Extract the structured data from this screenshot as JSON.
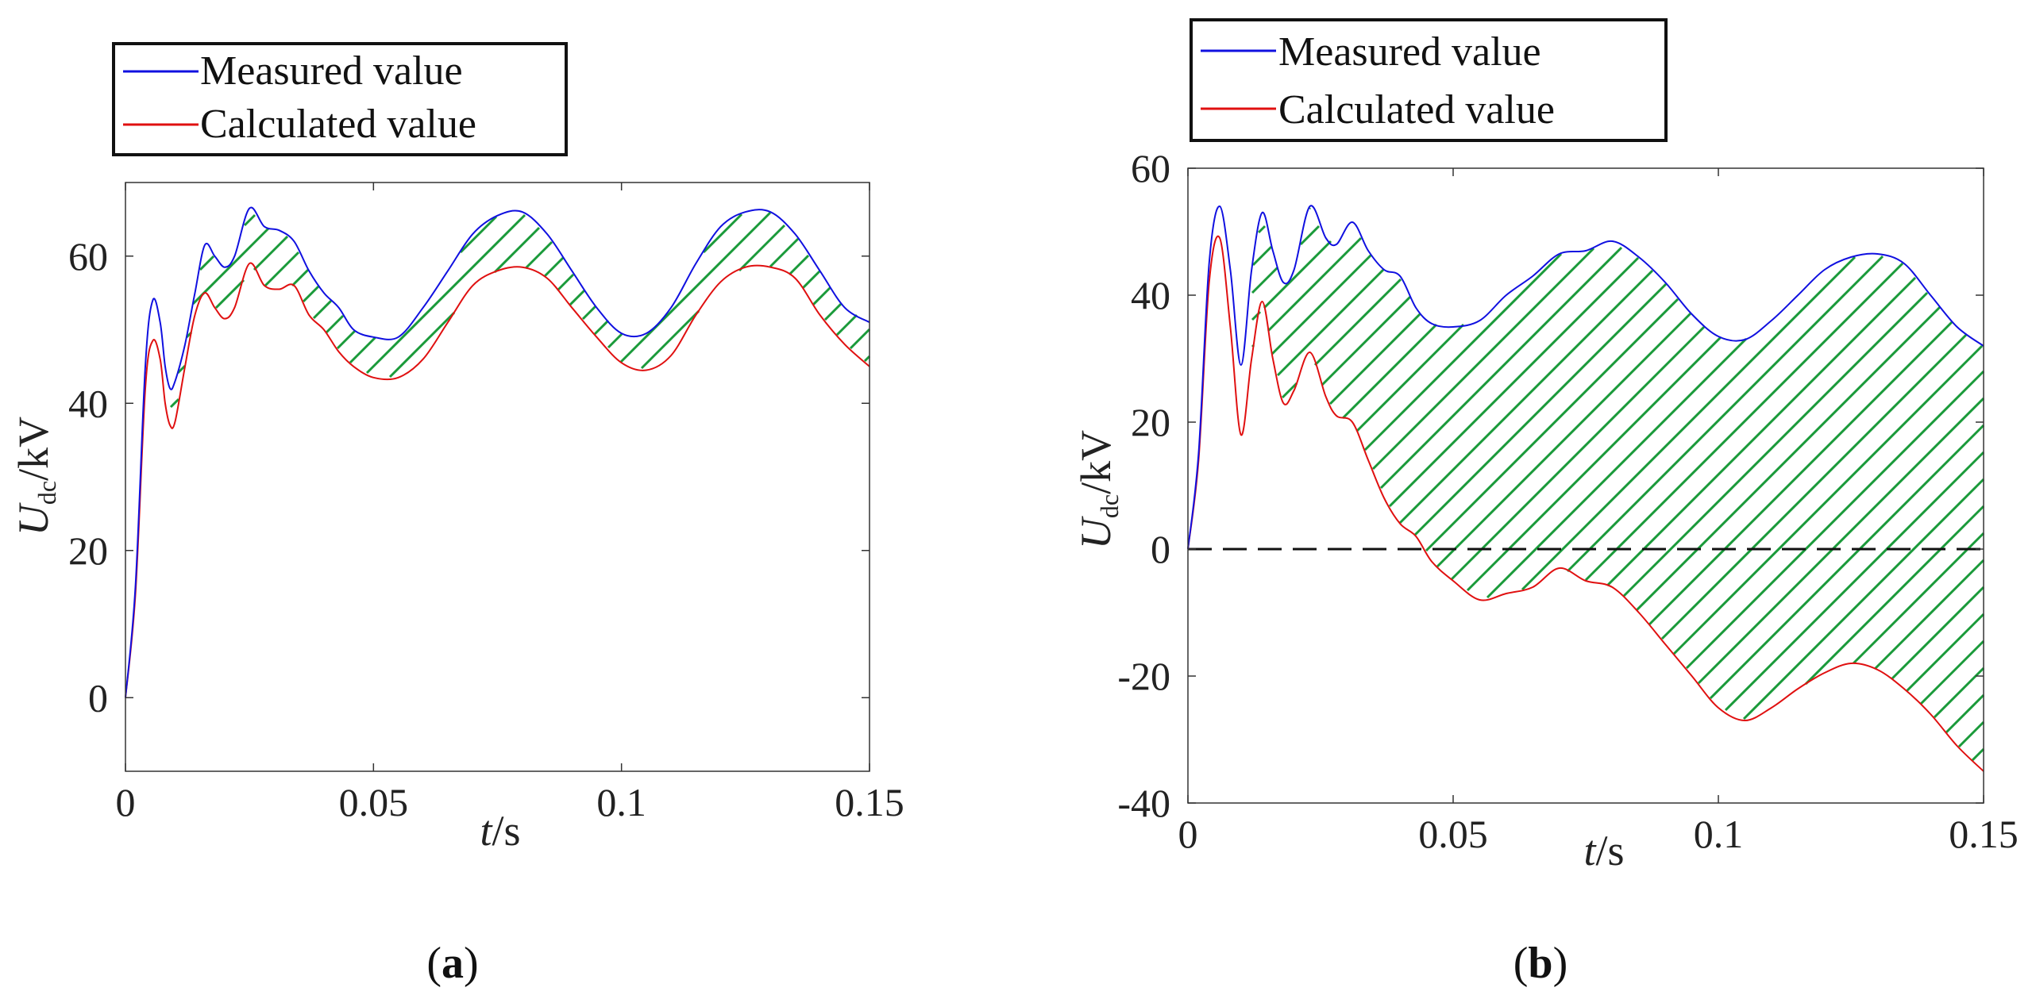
{
  "colors": {
    "measured": "#1010e0",
    "calculated": "#e01010",
    "hatch": "#1a9a3a",
    "zero_line": "#111111",
    "axis": "#333333"
  },
  "chart_data": [
    {
      "type": "line",
      "panel": "a",
      "caption": "(a)",
      "caption_letter": "a",
      "xlabel": "t/s",
      "xlabel_var": "t",
      "xlabel_unit": "/s",
      "ylabel": "U_dc/kV",
      "ylabel_var": "U",
      "ylabel_sub": "dc",
      "ylabel_unit": "/kV",
      "xlim": [
        0,
        0.15
      ],
      "ylim": [
        -10,
        70
      ],
      "xticks": [
        0,
        0.05,
        0.1,
        0.15
      ],
      "xtick_labels": [
        "0",
        "0.05",
        "0.1",
        "0.15"
      ],
      "yticks": [
        0,
        20,
        40,
        60
      ],
      "ytick_labels": [
        "0",
        "20",
        "40",
        "60"
      ],
      "grid": false,
      "legend_position": "above-left",
      "hatch_between_series": true,
      "series": [
        {
          "name": "Measured value",
          "x": [
            0,
            0.002,
            0.004,
            0.0055,
            0.007,
            0.008,
            0.009,
            0.01,
            0.012,
            0.014,
            0.016,
            0.018,
            0.02,
            0.022,
            0.025,
            0.028,
            0.031,
            0.034,
            0.037,
            0.04,
            0.043,
            0.046,
            0.05,
            0.055,
            0.06,
            0.065,
            0.07,
            0.075,
            0.08,
            0.085,
            0.09,
            0.095,
            0.1,
            0.105,
            0.11,
            0.115,
            0.12,
            0.125,
            0.13,
            0.135,
            0.14,
            0.145,
            0.15
          ],
          "y": [
            0,
            15,
            45,
            54,
            51,
            45,
            42,
            43,
            48,
            55,
            61.5,
            60,
            58.5,
            60,
            66.5,
            64,
            63.5,
            62,
            58,
            55,
            53,
            50,
            49,
            49,
            53,
            58,
            63,
            65.5,
            66,
            63,
            58,
            53,
            49.5,
            49.5,
            53,
            59,
            64,
            66,
            66,
            63,
            58,
            53,
            51
          ]
        },
        {
          "name": "Calculated value",
          "x": [
            0,
            0.002,
            0.004,
            0.0055,
            0.007,
            0.008,
            0.009,
            0.01,
            0.012,
            0.014,
            0.016,
            0.018,
            0.02,
            0.022,
            0.025,
            0.028,
            0.031,
            0.034,
            0.037,
            0.04,
            0.043,
            0.046,
            0.05,
            0.055,
            0.06,
            0.065,
            0.07,
            0.075,
            0.08,
            0.085,
            0.09,
            0.095,
            0.1,
            0.105,
            0.11,
            0.115,
            0.12,
            0.125,
            0.13,
            0.135,
            0.14,
            0.145,
            0.15
          ],
          "y": [
            0,
            14,
            42,
            48.5,
            46,
            40,
            37,
            37.5,
            45,
            52,
            55,
            53,
            51.5,
            53,
            59,
            56,
            55.5,
            56,
            52,
            50,
            47,
            45,
            43.5,
            43.5,
            46,
            51,
            56,
            58,
            58.5,
            57,
            53,
            49,
            45.5,
            44.5,
            46.5,
            52,
            56.5,
            58.5,
            58.5,
            57,
            52,
            48,
            45
          ]
        }
      ]
    },
    {
      "type": "line",
      "panel": "b",
      "caption": "(b)",
      "caption_letter": "b",
      "xlabel": "t/s",
      "xlabel_var": "t",
      "xlabel_unit": "/s",
      "ylabel": "U_dc/kV",
      "ylabel_var": "U",
      "ylabel_sub": "dc",
      "ylabel_unit": "/kV",
      "xlim": [
        0,
        0.15
      ],
      "ylim": [
        -40,
        60
      ],
      "xticks": [
        0,
        0.05,
        0.1,
        0.15
      ],
      "xtick_labels": [
        "0",
        "0.05",
        "0.1",
        "0.15"
      ],
      "yticks": [
        -40,
        -20,
        0,
        20,
        40,
        60
      ],
      "ytick_labels": [
        "-40",
        "-20",
        "0",
        "20",
        "40",
        "60"
      ],
      "grid": false,
      "legend_position": "above-left",
      "hatch_between_series": true,
      "reference_line": {
        "y": 0,
        "style": "dashed"
      },
      "series": [
        {
          "name": "Measured value",
          "x": [
            0,
            0.002,
            0.004,
            0.006,
            0.008,
            0.01,
            0.012,
            0.014,
            0.016,
            0.018,
            0.02,
            0.023,
            0.026,
            0.028,
            0.031,
            0.034,
            0.037,
            0.04,
            0.043,
            0.046,
            0.05,
            0.055,
            0.06,
            0.065,
            0.07,
            0.075,
            0.08,
            0.085,
            0.09,
            0.095,
            0.1,
            0.105,
            0.11,
            0.115,
            0.12,
            0.125,
            0.13,
            0.135,
            0.14,
            0.145,
            0.15
          ],
          "y": [
            0,
            15,
            45,
            54,
            44,
            29,
            44,
            53,
            47,
            42,
            44,
            54,
            49,
            48,
            51.5,
            47,
            44,
            43,
            38,
            35.5,
            35,
            36,
            40,
            43,
            46.5,
            47,
            48.5,
            46,
            42,
            37,
            33.5,
            33,
            36,
            40,
            44,
            46,
            46.5,
            45,
            40,
            35,
            32
          ]
        },
        {
          "name": "Calculated value",
          "x": [
            0,
            0.002,
            0.004,
            0.006,
            0.008,
            0.01,
            0.012,
            0.014,
            0.016,
            0.018,
            0.02,
            0.023,
            0.026,
            0.028,
            0.031,
            0.034,
            0.037,
            0.04,
            0.043,
            0.046,
            0.05,
            0.055,
            0.06,
            0.065,
            0.07,
            0.075,
            0.08,
            0.085,
            0.09,
            0.095,
            0.1,
            0.105,
            0.11,
            0.115,
            0.12,
            0.125,
            0.13,
            0.135,
            0.14,
            0.145,
            0.15
          ],
          "y": [
            0,
            14,
            42,
            49,
            35,
            18,
            30,
            39,
            30,
            23,
            25,
            31,
            24,
            21,
            20,
            14,
            8,
            4,
            2,
            -2,
            -5,
            -8,
            -7,
            -6,
            -3,
            -5,
            -6,
            -10,
            -15,
            -20,
            -25,
            -27,
            -25,
            -22,
            -19.5,
            -18,
            -19,
            -22,
            -26,
            -31,
            -35
          ]
        }
      ]
    }
  ]
}
